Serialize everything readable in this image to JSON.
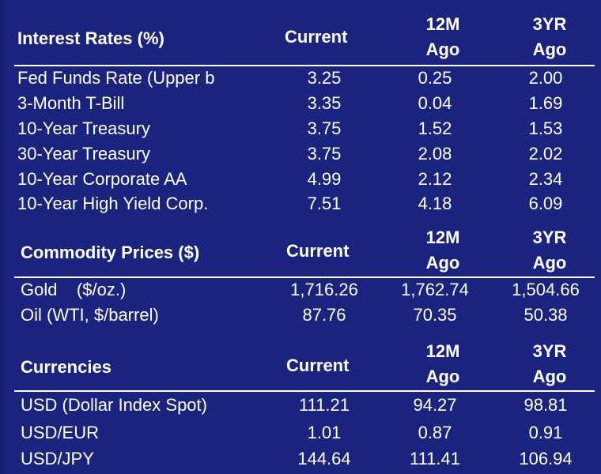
{
  "sections": [
    {
      "title": "Interest Rates (%)",
      "headers": {
        "current": "Current",
        "ago12_line1": "12M",
        "ago12_line2": "Ago",
        "ago3_line1": "3YR",
        "ago3_line2": "Ago"
      },
      "rows": [
        {
          "label": "Fed Funds Rate (Upper b",
          "current": "3.25",
          "ago12": "0.25",
          "ago3": "2.00"
        },
        {
          "label": "3-Month T-Bill",
          "current": "3.35",
          "ago12": "0.04",
          "ago3": "1.69"
        },
        {
          "label": "10-Year Treasury",
          "current": "3.75",
          "ago12": "1.52",
          "ago3": "1.53"
        },
        {
          "label": "30-Year Treasury",
          "current": "3.75",
          "ago12": "2.08",
          "ago3": "2.02"
        },
        {
          "label": "10-Year Corporate AA",
          "current": "4.99",
          "ago12": "2.12",
          "ago3": "2.34"
        },
        {
          "label": "10-Year High Yield Corp.",
          "current": "7.51",
          "ago12": "4.18",
          "ago3": "6.09"
        }
      ]
    },
    {
      "title": "Commodity Prices ($)",
      "headers": {
        "current": "Current",
        "ago12_line1": "12M",
        "ago12_line2": "Ago",
        "ago3_line1": "3YR",
        "ago3_line2": "Ago"
      },
      "rows": [
        {
          "label": "Gold    ($/oz.)",
          "current": "1,716.26",
          "ago12": "1,762.74",
          "ago3": "1,504.66"
        },
        {
          "label": "Oil (WTI, $/barrel)",
          "current": "87.76",
          "ago12": "70.35",
          "ago3": "50.38"
        }
      ]
    },
    {
      "title": "Currencies",
      "headers": {
        "current": "Current",
        "ago12_line1": "12M",
        "ago12_line2": "Ago",
        "ago3_line1": "3YR",
        "ago3_line2": "Ago"
      },
      "rows": [
        {
          "label": "USD (Dollar Index Spot)",
          "current": "111.21",
          "ago12": "94.27",
          "ago3": "98.81"
        },
        {
          "label": "USD/EUR",
          "current": "1.01",
          "ago12": "0.87",
          "ago3": "0.91"
        },
        {
          "label": "USD/JPY",
          "current": "144.64",
          "ago12": "111.41",
          "ago3": "106.94"
        }
      ]
    }
  ],
  "colors": {
    "background": "#1a237e",
    "text": "#ffffff",
    "rule": "#ffffff"
  }
}
